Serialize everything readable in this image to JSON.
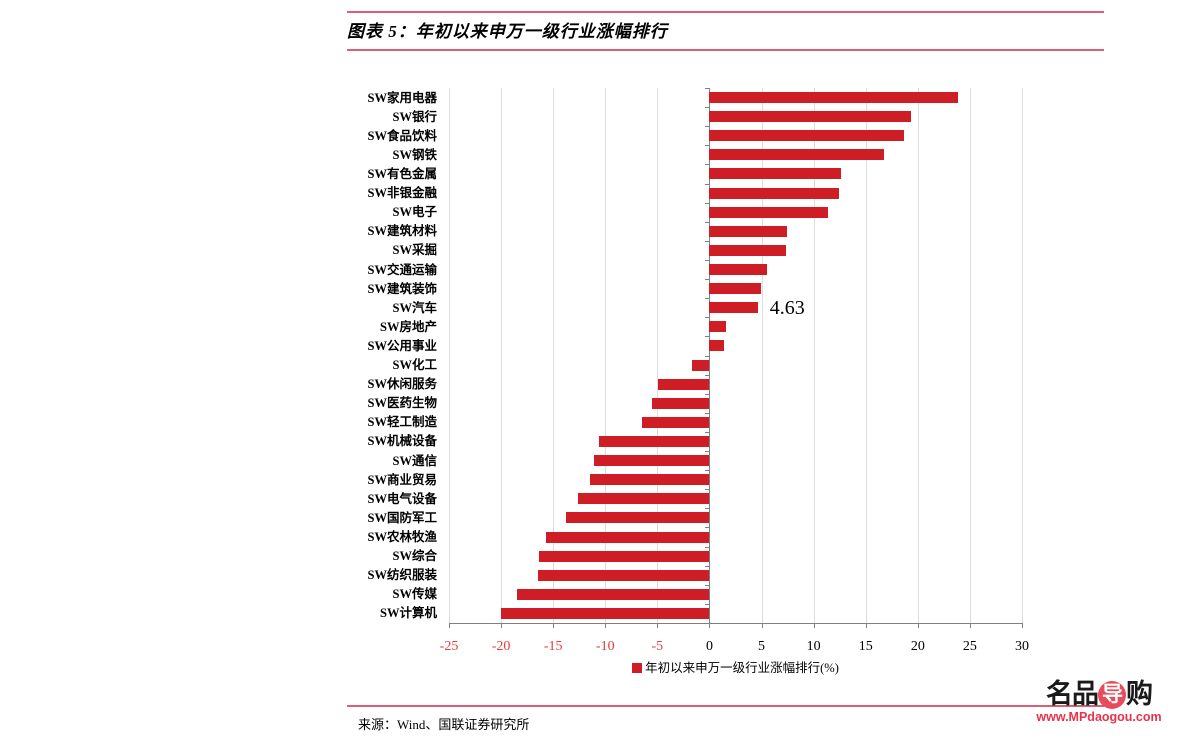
{
  "header": {
    "title": "图表 5：年初以来申万一级行业涨幅排行"
  },
  "chart_data": {
    "type": "bar",
    "orientation": "horizontal",
    "title": "图表 5：年初以来申万一级行业涨幅排行",
    "legend": "年初以来申万一级行业涨幅排行(%)",
    "legend_position": "bottom",
    "xlim": [
      -25,
      30
    ],
    "x_ticks": [
      -25,
      -20,
      -15,
      -10,
      -5,
      0,
      5,
      10,
      15,
      20,
      25,
      30
    ],
    "grid": true,
    "categories": [
      "SW家用电器",
      "SW银行",
      "SW食品饮料",
      "SW钢铁",
      "SW有色金属",
      "SW非银金融",
      "SW电子",
      "SW建筑材料",
      "SW采掘",
      "SW交通运输",
      "SW建筑装饰",
      "SW汽车",
      "SW房地产",
      "SW公用事业",
      "SW化工",
      "SW休闲服务",
      "SW医药生物",
      "SW轻工制造",
      "SW机械设备",
      "SW通信",
      "SW商业贸易",
      "SW电气设备",
      "SW国防军工",
      "SW农林牧渔",
      "SW综合",
      "SW纺织服装",
      "SW传媒",
      "SW计算机"
    ],
    "values": [
      23.9,
      19.3,
      18.7,
      16.8,
      12.6,
      12.4,
      11.4,
      7.4,
      7.3,
      5.5,
      4.9,
      4.63,
      1.6,
      1.4,
      -1.7,
      -4.9,
      -5.5,
      -6.5,
      -10.6,
      -11.1,
      -11.5,
      -12.6,
      -13.8,
      -15.7,
      -16.4,
      -16.5,
      -18.5,
      -20.0
    ],
    "point_label": {
      "category": "SW汽车",
      "text": "4.63"
    },
    "colors": {
      "bar": "#cf1d25",
      "negative_tick_label": "#e23d3d",
      "gridline": "#dcdcdc",
      "axis": "#7f7f7f",
      "separator_line": "#dc5f78"
    }
  },
  "footer": {
    "source": "来源：Wind、国联证券研究所"
  },
  "watermark": {
    "brand_prefix": "名品",
    "brand_highlight": "导",
    "brand_suffix": "购",
    "url": "www.MPdaogou.com"
  }
}
